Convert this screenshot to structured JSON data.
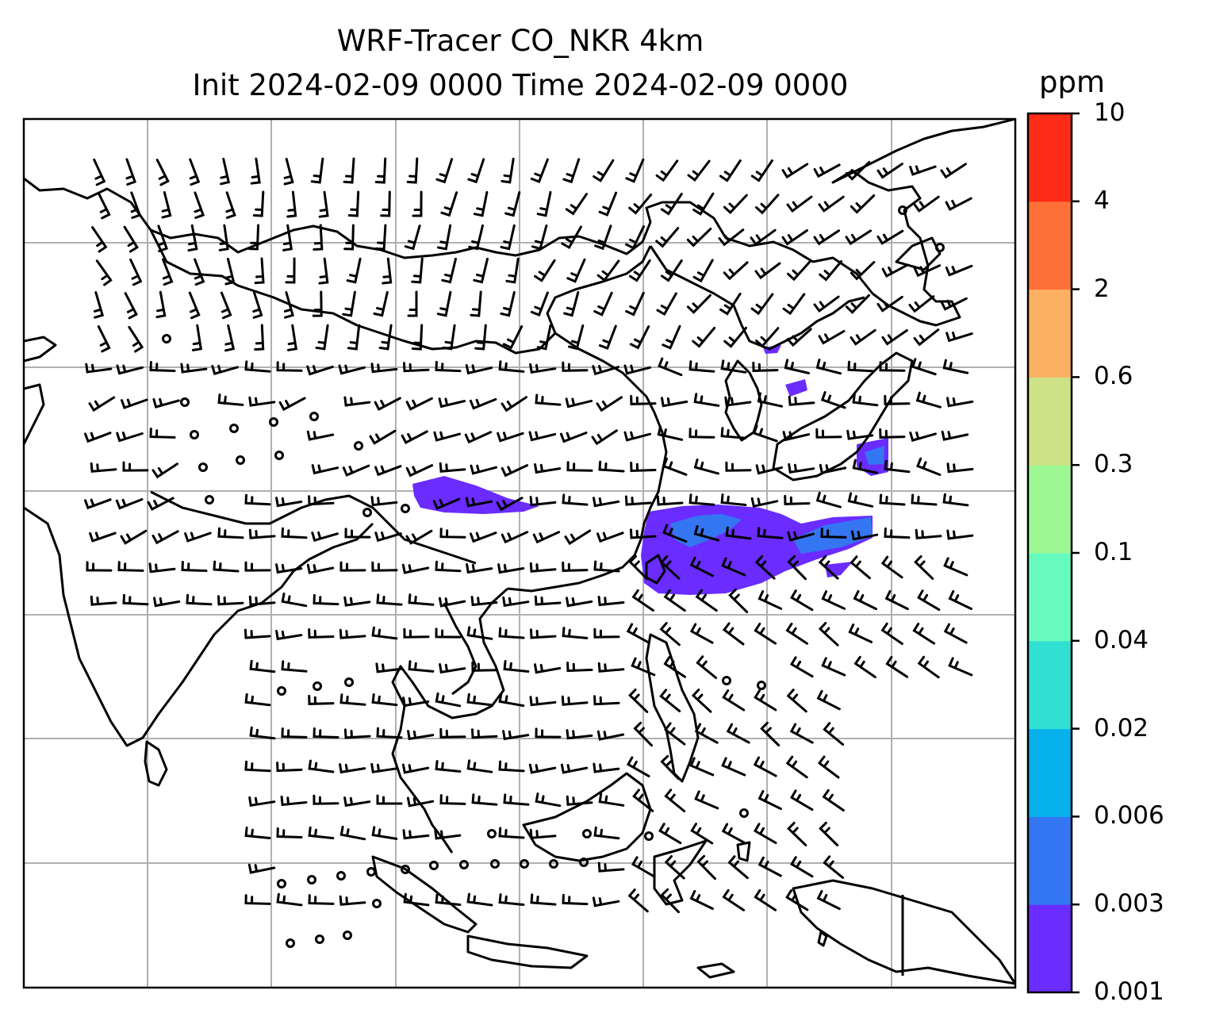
{
  "header": {
    "title": "WRF-Tracer CO_NKR 4km",
    "subtitle": "Init 2024-02-09 0000 Time 2024-02-09 0000"
  },
  "colorbar": {
    "unit": "ppm",
    "levels": [
      "0.001",
      "0.003",
      "0.006",
      "0.02",
      "0.04",
      "0.1",
      "0.3",
      "0.6",
      "2",
      "4",
      "10"
    ],
    "colors": [
      "#6a2cff",
      "#3476f2",
      "#06b1ec",
      "#32e0d2",
      "#66fabf",
      "#9df894",
      "#cde186",
      "#fcb062",
      "#fe7038",
      "#fe2c16"
    ]
  },
  "map": {
    "grid": true,
    "coastline_color": "#000000",
    "gridline_color": "#b0b0b0",
    "plume_low_color": "#6a2cff",
    "plume_mid_color": "#3476f2"
  }
}
